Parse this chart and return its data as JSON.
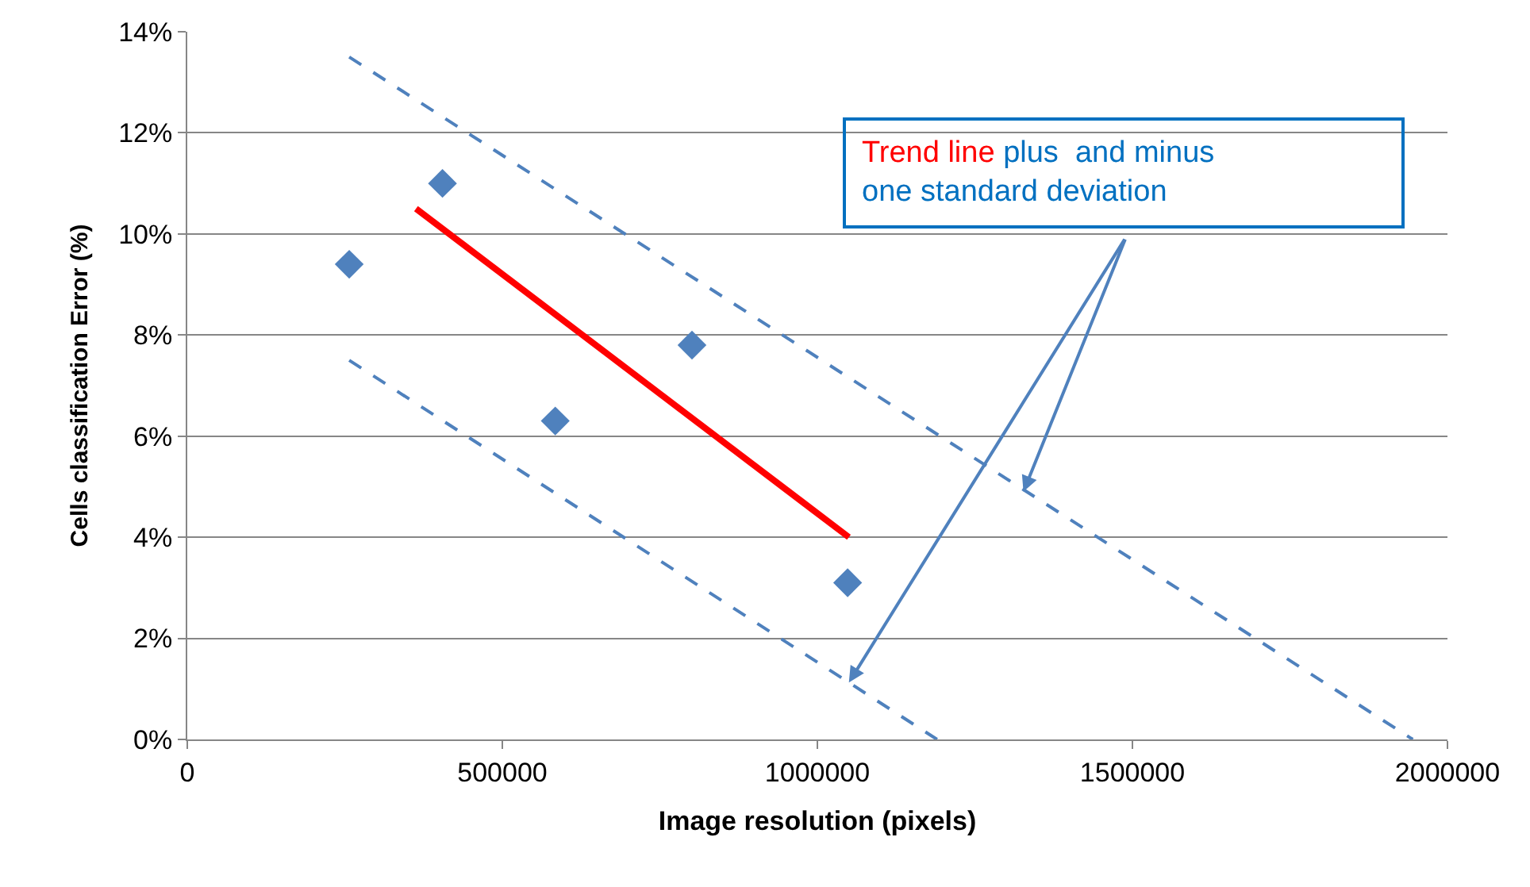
{
  "chart_data": {
    "type": "scatter",
    "xlabel": "Image resolution (pixels)",
    "ylabel": "Cells classification Error (%)",
    "xlim": [
      0,
      2000000
    ],
    "xticks": [
      0,
      500000,
      1000000,
      1500000,
      2000000
    ],
    "ylim": [
      0,
      14
    ],
    "yticks": [
      {
        "value": 0,
        "label": "0%"
      },
      {
        "value": 2,
        "label": "2%"
      },
      {
        "value": 4,
        "label": "4%"
      },
      {
        "value": 6,
        "label": "6%"
      },
      {
        "value": 8,
        "label": "8%"
      },
      {
        "value": 10,
        "label": "10%"
      },
      {
        "value": 12,
        "label": "12%"
      },
      {
        "value": 14,
        "label": "14%"
      }
    ],
    "grid": "y",
    "series": [
      {
        "marker": "diamond",
        "color": "#4f81bd",
        "x": [
          257000,
          405000,
          584000,
          801000,
          1048000
        ],
        "values": [
          9.4,
          11.0,
          6.3,
          7.8,
          3.1
        ]
      },
      {
        "type": "line",
        "marker": "none",
        "line_style": "solid",
        "color": "#ff0000",
        "x": [
          363000,
          1050000
        ],
        "values": [
          10.5,
          4.0
        ]
      },
      {
        "type": "line",
        "marker": "none",
        "line_style": "dashed",
        "color": "#4f81bd",
        "x": [
          257000,
          1945000
        ],
        "values": [
          13.5,
          0
        ]
      },
      {
        "type": "line",
        "marker": "none",
        "line_style": "dashed",
        "color": "#4f81bd",
        "x": [
          257000,
          1190000
        ],
        "values": [
          7.5,
          0
        ]
      }
    ],
    "annotations": [
      "Trend line",
      {
        "text": "plus  and minus\none standard deviation",
        "x": 1327000,
        "y": 4.9
      }
    ]
  }
}
